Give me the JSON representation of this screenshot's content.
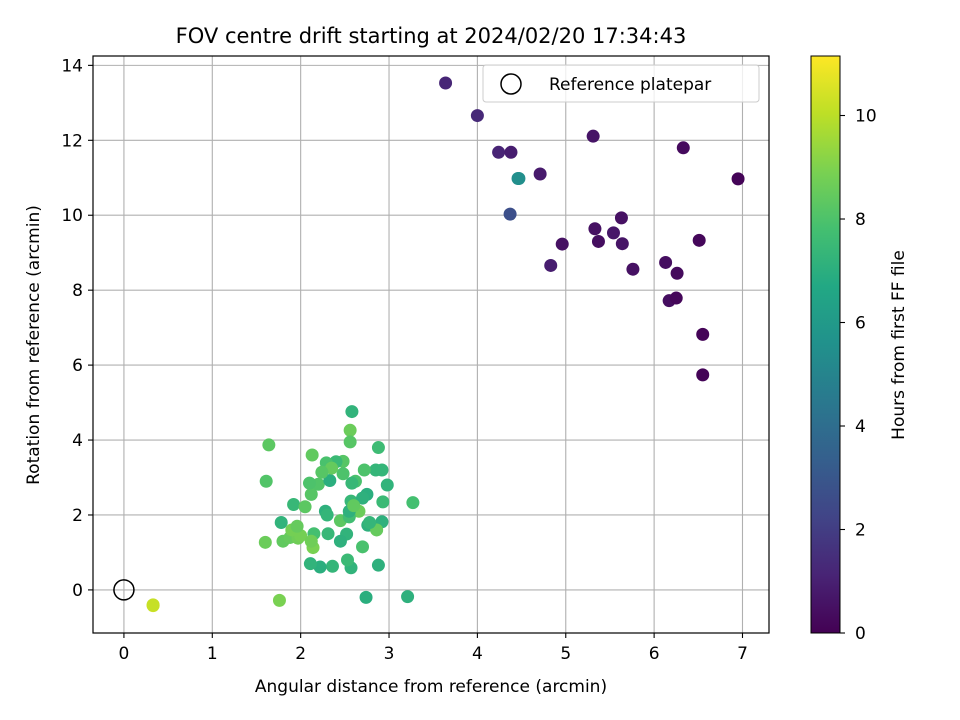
{
  "chart_data": {
    "type": "scatter",
    "title": "FOV centre drift starting at 2024/02/20 17:34:43",
    "xlabel": "Angular distance from reference (arcmin)",
    "ylabel": "Rotation from reference (arcmin)",
    "xlim": [
      -0.35,
      7.3
    ],
    "ylim": [
      -1.15,
      14.25
    ],
    "xticks": [
      0,
      1,
      2,
      3,
      4,
      5,
      6,
      7
    ],
    "xtick_labels": [
      "0",
      "1",
      "2",
      "3",
      "4",
      "5",
      "6",
      "7"
    ],
    "yticks": [
      0,
      2,
      4,
      6,
      8,
      10,
      12,
      14
    ],
    "ytick_labels": [
      "0",
      "2",
      "4",
      "6",
      "8",
      "10",
      "12",
      "14"
    ],
    "grid": true,
    "legend": {
      "placement": "top-right",
      "entries": [
        "Reference platepar"
      ]
    },
    "colormap": "viridis",
    "colorbar": {
      "label": "Hours from first FF file",
      "range": [
        0,
        11.15
      ],
      "ticks": [
        0,
        2,
        4,
        6,
        8,
        10
      ],
      "tick_labels": [
        "0",
        "2",
        "4",
        "6",
        "8",
        "10"
      ]
    },
    "reference": {
      "x": 0,
      "y": 0,
      "label": "Reference platepar"
    },
    "series": [
      {
        "color_by": "Hours from first FF file",
        "x": [
          0.33,
          0.33,
          1.76,
          3.21,
          2.74,
          2.57,
          2.36,
          2.22,
          2.11,
          2.88,
          2.7,
          2.53,
          3.27,
          1.6,
          1.8,
          1.88,
          1.97,
          2.14,
          2.31,
          2.52,
          2.77,
          2.92,
          1.78,
          1.92,
          2.12,
          2.28,
          2.55,
          2.76,
          2.93,
          1.9,
          2.2,
          2.48,
          2.85,
          2.05,
          2.33,
          2.66,
          2.98,
          2.1,
          2.4,
          2.62,
          2.88,
          1.61,
          2.13,
          2.56,
          2.92,
          2.0,
          2.29,
          2.72,
          2.45,
          2.58,
          2.15,
          2.35,
          2.55,
          2.3,
          2.45,
          2.75,
          2.56,
          2.48,
          2.86,
          2.58,
          1.64,
          2.57,
          2.55,
          1.96,
          2.7,
          2.78,
          2.6,
          2.12,
          2.24,
          3.64,
          4.0,
          4.24,
          4.38,
          4.71,
          4.46,
          4.47,
          4.37,
          5.31,
          5.33,
          5.37,
          5.54,
          5.63,
          5.64,
          4.96,
          4.83,
          5.76,
          6.13,
          6.26,
          6.33,
          6.51,
          6.95,
          6.17,
          6.25,
          6.55,
          6.55
        ],
        "y": [
          -0.42,
          -0.4,
          -0.28,
          -0.18,
          -0.2,
          0.59,
          0.63,
          0.61,
          0.7,
          0.66,
          1.15,
          0.8,
          2.33,
          1.27,
          1.3,
          1.4,
          1.38,
          1.13,
          1.5,
          1.49,
          1.73,
          1.82,
          1.8,
          2.28,
          2.55,
          2.1,
          1.97,
          1.73,
          2.35,
          1.6,
          2.82,
          3.43,
          3.2,
          2.22,
          2.92,
          2.1,
          2.8,
          2.85,
          3.42,
          2.9,
          3.8,
          2.9,
          3.6,
          4.26,
          3.2,
          1.45,
          3.39,
          3.2,
          1.85,
          2.85,
          1.5,
          3.25,
          1.95,
          2.0,
          1.3,
          2.55,
          3.95,
          3.1,
          1.6,
          4.76,
          3.87,
          2.37,
          2.1,
          1.7,
          2.45,
          1.8,
          2.25,
          1.3,
          3.14,
          13.53,
          12.66,
          11.68,
          11.68,
          11.1,
          10.98,
          10.98,
          10.03,
          12.11,
          9.64,
          9.3,
          9.53,
          9.93,
          9.24,
          9.23,
          8.66,
          8.56,
          8.74,
          8.45,
          11.8,
          9.33,
          10.97,
          7.72,
          7.79,
          6.82,
          5.74
        ],
        "hours": [
          10.3,
          10.2,
          8.9,
          7.1,
          7.0,
          7.2,
          7.3,
          7.0,
          7.2,
          7.1,
          7.9,
          7.5,
          7.8,
          8.6,
          8.4,
          8.5,
          8.7,
          8.9,
          7.4,
          7.2,
          7.0,
          7.1,
          7.2,
          7.4,
          8.2,
          7.1,
          7.3,
          7.1,
          7.5,
          8.8,
          8.1,
          8.2,
          7.3,
          8.3,
          7.0,
          8.6,
          7.2,
          8.0,
          7.5,
          7.9,
          7.6,
          8.1,
          8.4,
          8.6,
          7.3,
          8.8,
          7.9,
          8.0,
          8.3,
          7.4,
          7.8,
          8.5,
          7.7,
          7.3,
          7.1,
          7.0,
          8.2,
          8.0,
          8.5,
          7.2,
          8.3,
          7.4,
          7.1,
          8.5,
          7.1,
          7.3,
          8.4,
          8.7,
          8.2,
          1.2,
          1.3,
          1.1,
          0.9,
          0.8,
          5.4,
          5.5,
          2.7,
          0.6,
          0.5,
          0.4,
          0.7,
          0.5,
          0.6,
          0.5,
          0.9,
          0.5,
          0.4,
          0.3,
          0.3,
          0.2,
          0.1,
          0.4,
          0.2,
          0.1,
          0.1
        ]
      }
    ]
  }
}
